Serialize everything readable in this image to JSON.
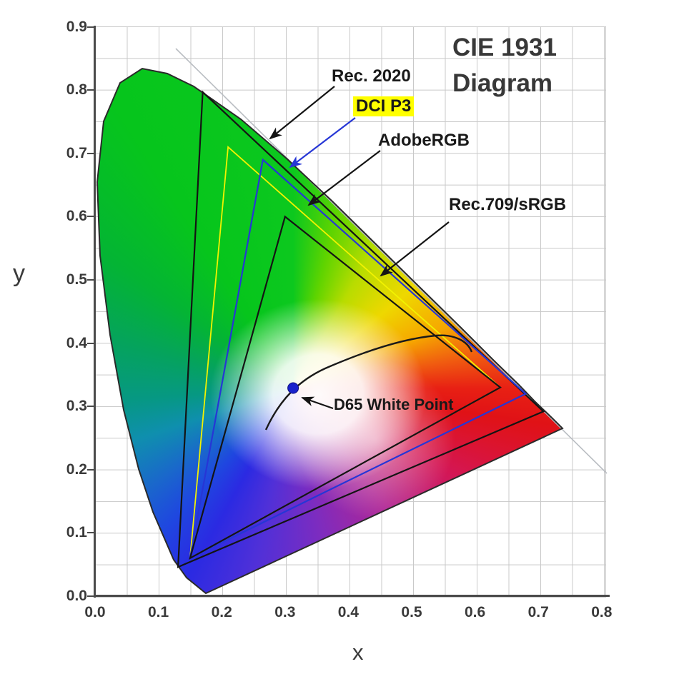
{
  "title": {
    "line1": "CIE 1931",
    "line2": "Diagram"
  },
  "axes": {
    "x_label": "x",
    "y_label": "y",
    "x_ticks": [
      "0.0",
      "0.1",
      "0.2",
      "0.3",
      "0.4",
      "0.5",
      "0.6",
      "0.7",
      "0.8"
    ],
    "y_ticks": [
      "0.9",
      "0.8",
      "0.7",
      "0.6",
      "0.5",
      "0.4",
      "0.3",
      "0.2",
      "0.1",
      "0.0"
    ],
    "x_range": [
      0.0,
      0.8
    ],
    "y_range": [
      0.0,
      0.9
    ],
    "grid_step": 0.05
  },
  "annotations": {
    "rec2020": {
      "label": "Rec. 2020"
    },
    "dcip3": {
      "label": "DCI P3",
      "highlight_color": "#ffff00"
    },
    "adobergb": {
      "label": "AdobeRGB"
    },
    "rec709": {
      "label": "Rec.709/sRGB"
    },
    "d65": {
      "label": "D65 White Point"
    }
  },
  "chart_data": {
    "type": "scatter",
    "title": "CIE 1931 Diagram",
    "xlabel": "x",
    "ylabel": "y",
    "xlim": [
      0.0,
      0.8
    ],
    "ylim": [
      0.0,
      0.9
    ],
    "grid": true,
    "grid_step": 0.05,
    "series": [
      {
        "name": "Rec. 2020",
        "color": "#141414",
        "points": [
          [
            0.708,
            0.292
          ],
          [
            0.17,
            0.797
          ],
          [
            0.131,
            0.046
          ]
        ]
      },
      {
        "name": "DCI P3",
        "color": "#2636d6",
        "points": [
          [
            0.68,
            0.32
          ],
          [
            0.265,
            0.69
          ],
          [
            0.15,
            0.06
          ]
        ]
      },
      {
        "name": "AdobeRGB",
        "color": "#f2f200",
        "points": [
          [
            0.64,
            0.33
          ],
          [
            0.21,
            0.71
          ],
          [
            0.15,
            0.06
          ]
        ]
      },
      {
        "name": "Rec.709/sRGB",
        "color": "#141414",
        "points": [
          [
            0.64,
            0.33
          ],
          [
            0.3,
            0.6
          ],
          [
            0.15,
            0.06
          ]
        ]
      },
      {
        "name": "D65 White Point",
        "color": "#1822cc",
        "points": [
          [
            0.3127,
            0.329
          ]
        ]
      }
    ],
    "spectral_locus_points": [
      [
        0.1741,
        0.005
      ],
      [
        0.144,
        0.0297
      ],
      [
        0.1241,
        0.0578
      ],
      [
        0.0913,
        0.1327
      ],
      [
        0.0687,
        0.2007
      ],
      [
        0.0454,
        0.295
      ],
      [
        0.0236,
        0.4127
      ],
      [
        0.0082,
        0.5384
      ],
      [
        0.0034,
        0.6548
      ],
      [
        0.0139,
        0.7502
      ],
      [
        0.0389,
        0.812
      ],
      [
        0.0743,
        0.8338
      ],
      [
        0.1142,
        0.8262
      ],
      [
        0.1547,
        0.8059
      ],
      [
        0.2296,
        0.7543
      ],
      [
        0.3016,
        0.6923
      ],
      [
        0.3731,
        0.6245
      ],
      [
        0.4441,
        0.5547
      ],
      [
        0.5125,
        0.4866
      ],
      [
        0.5752,
        0.4242
      ],
      [
        0.627,
        0.3725
      ],
      [
        0.6658,
        0.334
      ],
      [
        0.6915,
        0.3083
      ],
      [
        0.719,
        0.2809
      ],
      [
        0.7347,
        0.2653
      ]
    ],
    "planckian_locus_shown": true,
    "white_point": {
      "name": "D65",
      "x": 0.3127,
      "y": 0.329
    }
  }
}
